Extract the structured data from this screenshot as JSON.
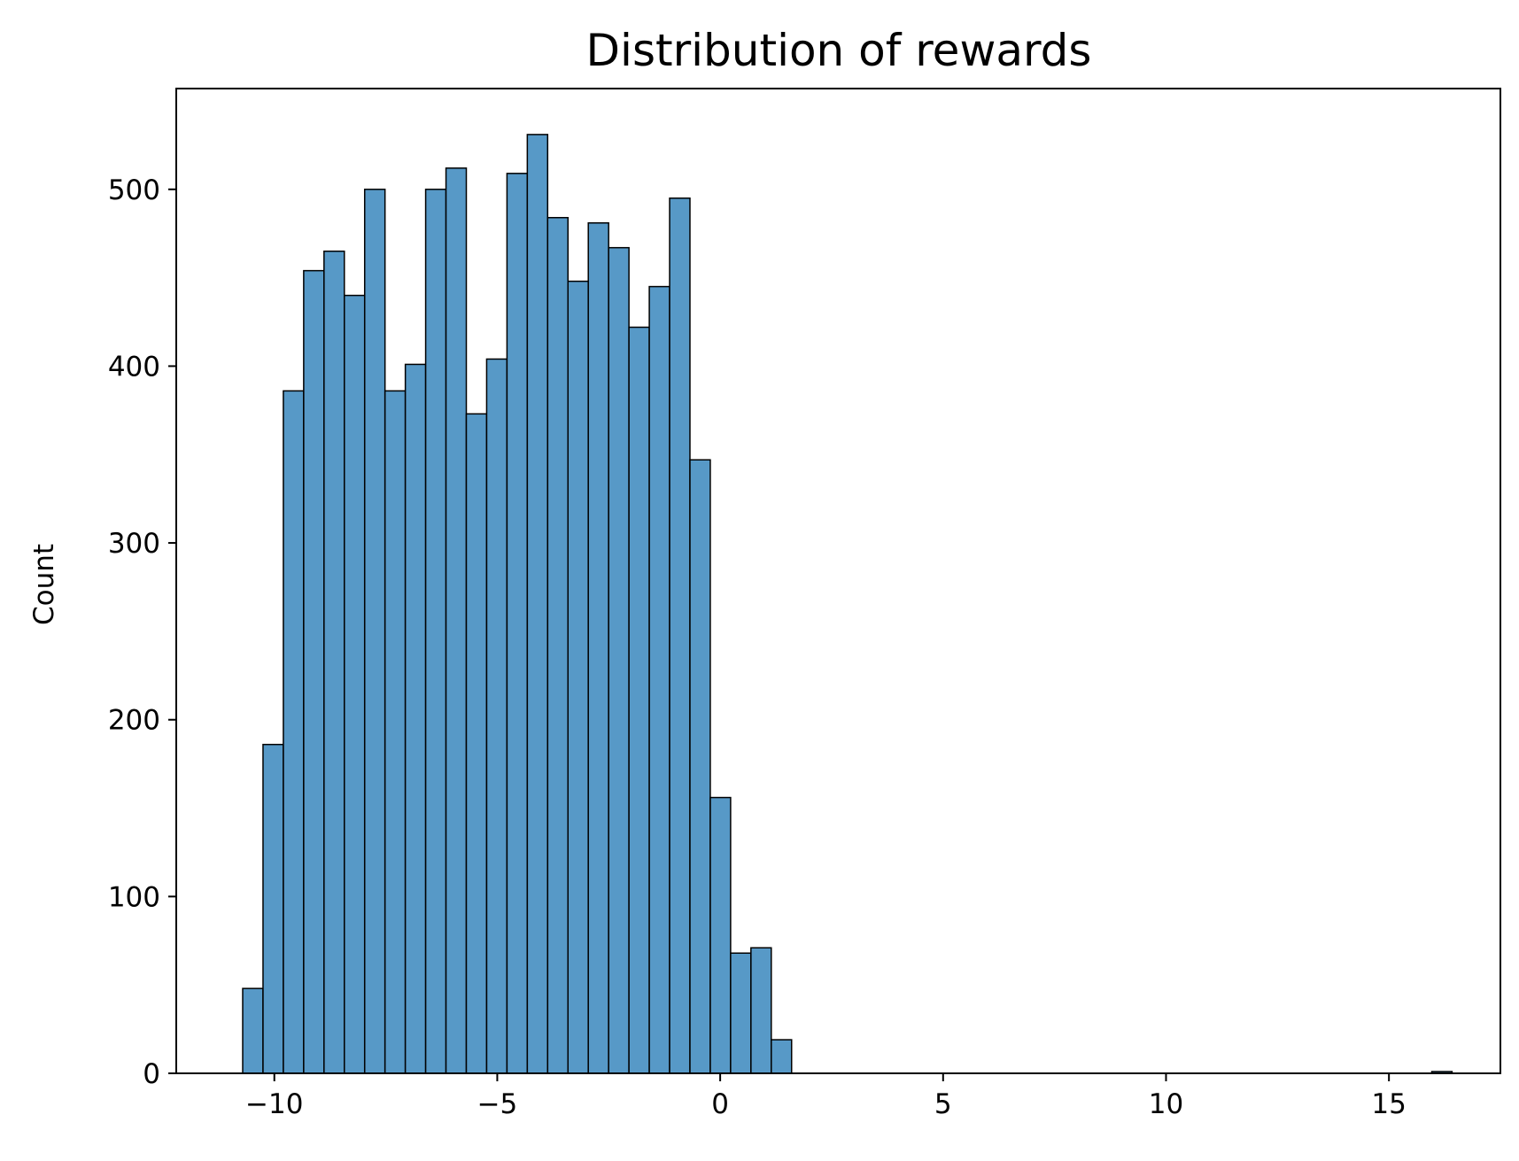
{
  "chart_data": {
    "type": "bar",
    "title": "Distribution of rewards",
    "xlabel": "",
    "ylabel": "Count",
    "xlim": [
      -12.2,
      17.5
    ],
    "ylim": [
      0,
      557
    ],
    "xticks": [
      -10,
      -5,
      0,
      5,
      10,
      15
    ],
    "xtick_labels": [
      "−10",
      "−5",
      "0",
      "5",
      "10",
      "15"
    ],
    "yticks": [
      0,
      100,
      200,
      300,
      400,
      500
    ],
    "ytick_labels": [
      "0",
      "100",
      "200",
      "300",
      "400",
      "500"
    ],
    "grid": false,
    "bar_color": "#5799c7",
    "edge_color": "#000000",
    "bin_width": 0.456,
    "bins_start": [
      -10.71,
      -10.254,
      -9.798,
      -9.342,
      -8.886,
      -8.43,
      -7.974,
      -7.518,
      -7.062,
      -6.606,
      -6.15,
      -5.694,
      -5.238,
      -4.782,
      -4.326,
      -3.87,
      -3.414,
      -2.958,
      -2.502,
      -2.046,
      -1.59,
      -1.134,
      -0.678,
      -0.222,
      0.234,
      0.69,
      1.146,
      15.96
    ],
    "values": [
      48,
      186,
      386,
      454,
      465,
      440,
      500,
      386,
      401,
      500,
      512,
      373,
      404,
      509,
      531,
      484,
      448,
      481,
      467,
      422,
      445,
      495,
      347,
      156,
      68,
      71,
      19,
      1
    ]
  }
}
